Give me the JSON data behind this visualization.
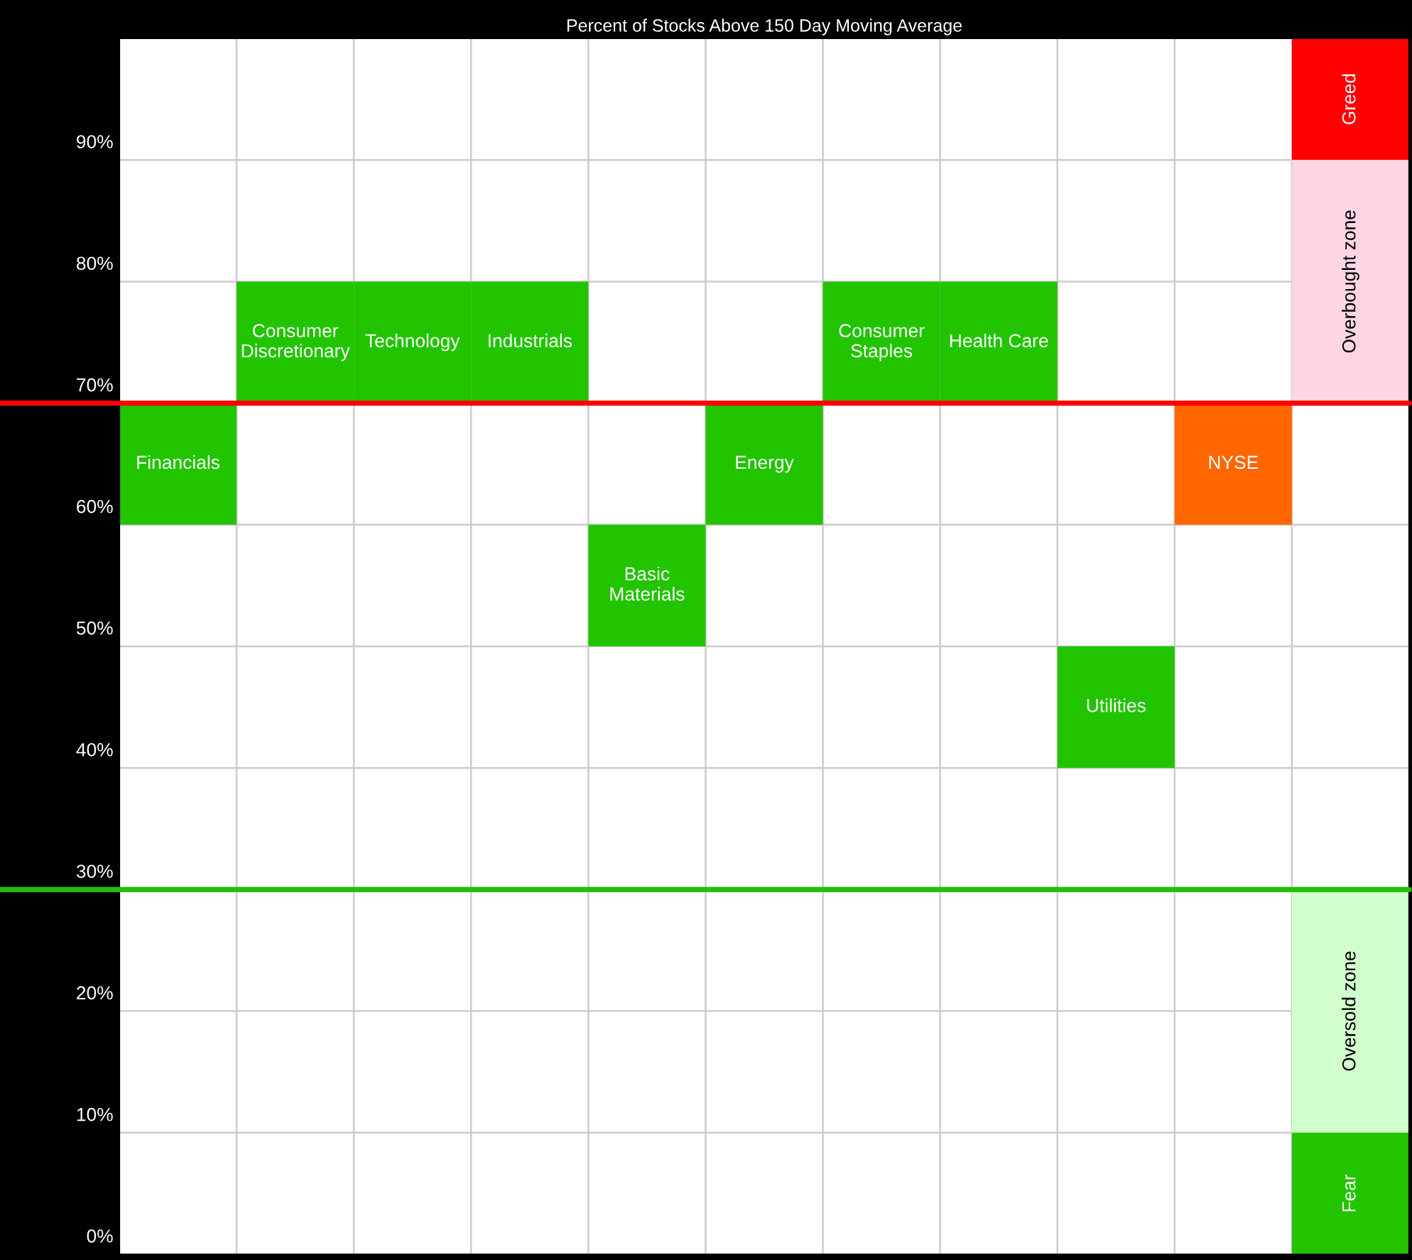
{
  "chart_data": {
    "type": "bar",
    "title": "Percent of Stocks Above 150 Day Moving Average",
    "categories": [
      null,
      null,
      null,
      null,
      null,
      null,
      null,
      null,
      null,
      null,
      null
    ],
    "ylim": [
      0,
      100
    ],
    "yticks": [
      {
        "value": 0,
        "label": "0%"
      },
      {
        "value": 10,
        "label": "10%"
      },
      {
        "value": 20,
        "label": "20%"
      },
      {
        "value": 30,
        "label": "30%"
      },
      {
        "value": 40,
        "label": "40%"
      },
      {
        "value": 50,
        "label": "50%"
      },
      {
        "value": 60,
        "label": "60%"
      },
      {
        "value": 70,
        "label": "70%"
      },
      {
        "value": 80,
        "label": "80%"
      },
      {
        "value": 90,
        "label": "90%"
      }
    ],
    "grid": true,
    "ref_lines": [
      {
        "axis": "y",
        "value": 70,
        "color": "#ff0000"
      },
      {
        "axis": "y",
        "value": 30,
        "color": "#22c000"
      }
    ],
    "series": [
      {
        "name": "Financials",
        "color": "#22c400",
        "values": [
          10,
          null,
          null,
          null,
          null,
          null,
          null,
          null,
          null,
          null,
          null
        ],
        "base": [
          60,
          null,
          null,
          null,
          null,
          null,
          null,
          null,
          null,
          null,
          null
        ]
      },
      {
        "name": "Consumer Discretionary",
        "color": "#22c400",
        "values": [
          null,
          10,
          null,
          null,
          null,
          null,
          null,
          null,
          null,
          null,
          null
        ],
        "base": [
          null,
          70,
          null,
          null,
          null,
          null,
          null,
          null,
          null,
          null,
          null
        ]
      },
      {
        "name": "Technology",
        "color": "#22c400",
        "values": [
          null,
          null,
          10,
          null,
          null,
          null,
          null,
          null,
          null,
          null,
          null
        ],
        "base": [
          null,
          null,
          70,
          null,
          null,
          null,
          null,
          null,
          null,
          null,
          null
        ]
      },
      {
        "name": "Industrials",
        "color": "#22c400",
        "values": [
          null,
          null,
          null,
          10,
          null,
          null,
          null,
          null,
          null,
          null,
          null
        ],
        "base": [
          null,
          null,
          null,
          70,
          null,
          null,
          null,
          null,
          null,
          null,
          null
        ]
      },
      {
        "name": "Basic Materials",
        "color": "#22c400",
        "values": [
          null,
          null,
          null,
          null,
          10,
          null,
          null,
          null,
          null,
          null,
          null
        ],
        "base": [
          null,
          null,
          null,
          null,
          50,
          null,
          null,
          null,
          null,
          null,
          null
        ]
      },
      {
        "name": "Energy",
        "color": "#22c400",
        "values": [
          null,
          null,
          null,
          null,
          null,
          10,
          null,
          null,
          null,
          null,
          null
        ],
        "base": [
          null,
          null,
          null,
          null,
          null,
          60,
          null,
          null,
          null,
          null,
          null
        ]
      },
      {
        "name": "Consumer Staples",
        "color": "#22c400",
        "values": [
          null,
          null,
          null,
          null,
          null,
          null,
          10,
          null,
          null,
          null,
          null
        ],
        "base": [
          null,
          null,
          null,
          null,
          null,
          null,
          70,
          null,
          null,
          null,
          null
        ]
      },
      {
        "name": "Health Care",
        "color": "#22c400",
        "values": [
          null,
          null,
          null,
          null,
          null,
          null,
          null,
          10,
          null,
          null,
          null
        ],
        "base": [
          null,
          null,
          null,
          null,
          null,
          null,
          null,
          70,
          null,
          null,
          null
        ]
      },
      {
        "name": "Utilities",
        "color": "#22c400",
        "values": [
          null,
          null,
          null,
          null,
          null,
          null,
          null,
          null,
          10,
          null,
          null
        ],
        "base": [
          null,
          null,
          null,
          null,
          null,
          null,
          null,
          null,
          40,
          null,
          null
        ]
      },
      {
        "name": "NYSE",
        "color": "#ff6600",
        "values": [
          null,
          null,
          null,
          null,
          null,
          null,
          null,
          null,
          null,
          10,
          null
        ],
        "base": [
          null,
          null,
          null,
          null,
          null,
          null,
          null,
          null,
          null,
          60,
          null
        ]
      },
      {
        "name": "Greed",
        "color": "#ff0000",
        "values": [
          null,
          null,
          null,
          null,
          null,
          null,
          null,
          null,
          null,
          null,
          10
        ],
        "base": [
          null,
          null,
          null,
          null,
          null,
          null,
          null,
          null,
          null,
          null,
          90
        ]
      },
      {
        "name": "Overbought zone",
        "color": "#fdd5e5",
        "values": [
          null,
          null,
          null,
          null,
          null,
          null,
          null,
          null,
          null,
          null,
          20
        ],
        "base": [
          null,
          null,
          null,
          null,
          null,
          null,
          null,
          null,
          null,
          null,
          70
        ]
      },
      {
        "name": "Oversold zone",
        "color": "#d2fdcd",
        "values": [
          null,
          null,
          null,
          null,
          null,
          null,
          null,
          null,
          null,
          null,
          20
        ],
        "base": [
          null,
          null,
          null,
          null,
          null,
          null,
          null,
          null,
          null,
          null,
          10
        ]
      },
      {
        "name": "Fear",
        "color": "#22c400",
        "values": [
          null,
          null,
          null,
          null,
          null,
          null,
          null,
          null,
          null,
          null,
          10
        ],
        "base": [
          null,
          null,
          null,
          null,
          null,
          null,
          null,
          null,
          null,
          null,
          0
        ]
      }
    ]
  }
}
